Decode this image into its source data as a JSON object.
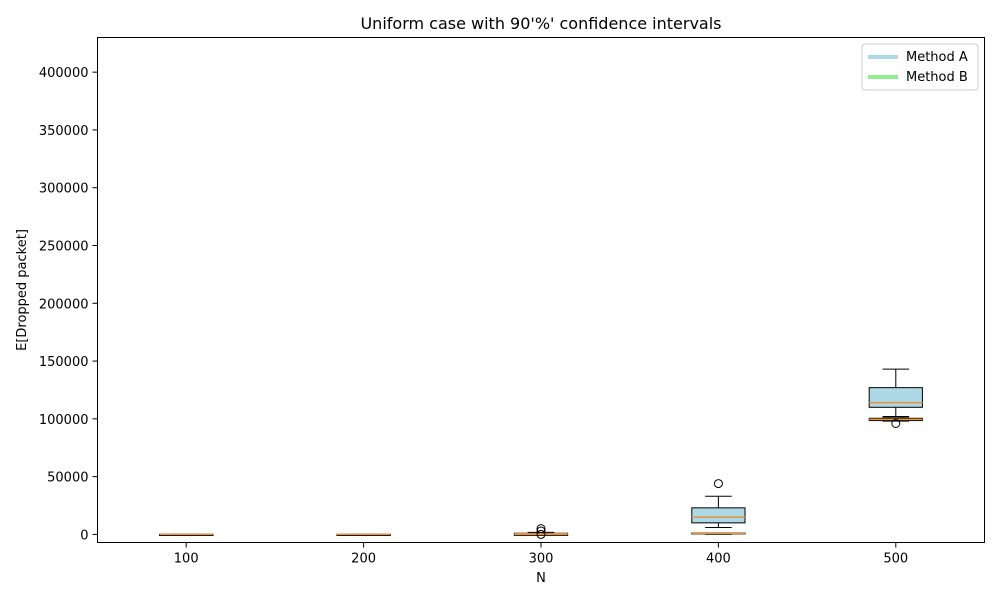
{
  "chart_data": {
    "type": "box",
    "title": "Uniform case with 90'%' confidence intervals",
    "xlabel": "N",
    "ylabel": "E[Dropped packet]",
    "categories": [
      "100",
      "200",
      "300",
      "400",
      "500"
    ],
    "xlim": [
      50,
      550
    ],
    "ylim": [
      -7000,
      430000
    ],
    "yticks": [
      0,
      50000,
      100000,
      150000,
      200000,
      250000,
      300000,
      350000,
      400000
    ],
    "ytick_labels": [
      "0",
      "50000",
      "100000",
      "150000",
      "200000",
      "250000",
      "300000",
      "350000",
      "400000"
    ],
    "legend_position": "top-right",
    "series": [
      {
        "name": "Method A",
        "color": "#add8e6",
        "boxes": [
          {
            "x": 100,
            "whislo": 0,
            "q1": 0,
            "med": 0,
            "q3": 0,
            "whishi": 0,
            "fliers": []
          },
          {
            "x": 200,
            "whislo": 0,
            "q1": 0,
            "med": 0,
            "q3": 0,
            "whishi": 0,
            "fliers": []
          },
          {
            "x": 300,
            "whislo": 0,
            "q1": 300,
            "med": 600,
            "q3": 1000,
            "whishi": 1800,
            "fliers": [
              5000,
              3000
            ]
          },
          {
            "x": 400,
            "whislo": 6000,
            "q1": 10000,
            "med": 15000,
            "q3": 23000,
            "whishi": 33000,
            "fliers": [
              44000
            ]
          },
          {
            "x": 500,
            "whislo": 102000,
            "q1": 110000,
            "med": 114000,
            "q3": 127000,
            "whishi": 143000,
            "fliers": []
          }
        ]
      },
      {
        "name": "Method B",
        "color": "#90ee90",
        "boxes": [
          {
            "x": 100,
            "whislo": 0,
            "q1": 0,
            "med": 0,
            "q3": 0,
            "whishi": 0,
            "fliers": []
          },
          {
            "x": 200,
            "whislo": 0,
            "q1": 0,
            "med": 0,
            "q3": 0,
            "whishi": 0,
            "fliers": []
          },
          {
            "x": 300,
            "whislo": 0,
            "q1": 0,
            "med": 0,
            "q3": 0,
            "whishi": 0,
            "fliers": [
              0
            ]
          },
          {
            "x": 400,
            "whislo": 0,
            "q1": 500,
            "med": 800,
            "q3": 1200,
            "whishi": 1200,
            "fliers": []
          },
          {
            "x": 500,
            "whislo": 98000,
            "q1": 98500,
            "med": 99500,
            "q3": 100500,
            "whishi": 101000,
            "fliers": [
              96000
            ]
          }
        ]
      }
    ],
    "median_color": "#e8923a"
  }
}
